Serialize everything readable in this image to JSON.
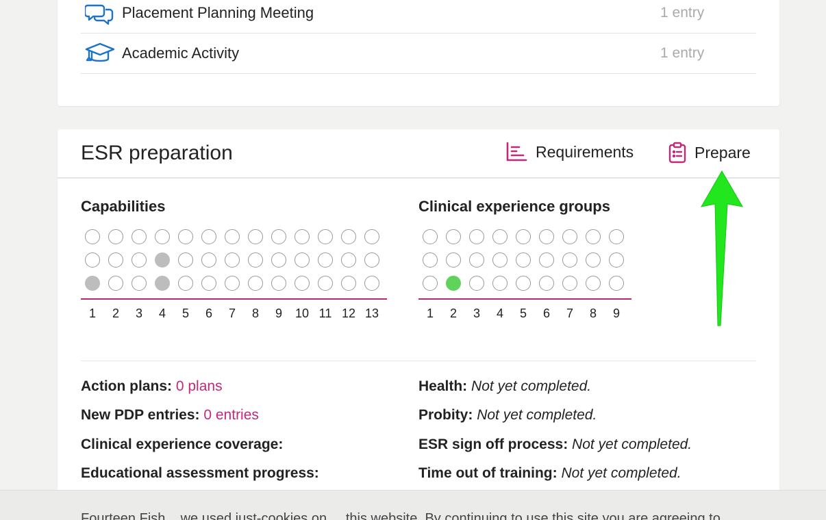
{
  "entries": [
    {
      "icon": "chat-bubbles-icon",
      "name": "Placement Planning Meeting",
      "count": "1 entry"
    },
    {
      "icon": "graduation-cap-icon",
      "name": "Academic Activity",
      "count": "1 entry"
    }
  ],
  "esr": {
    "title": "ESR preparation",
    "requirements_label": "Requirements",
    "prepare_label": "Prepare",
    "capabilities": {
      "title": "Capabilities",
      "columns": [
        "1",
        "2",
        "3",
        "4",
        "5",
        "6",
        "7",
        "8",
        "9",
        "10",
        "11",
        "12",
        "13"
      ],
      "filled": [
        [
          1,
          3
        ],
        [
          2,
          0
        ],
        [
          2,
          3
        ]
      ]
    },
    "clinical": {
      "title": "Clinical experience groups",
      "columns": [
        "1",
        "2",
        "3",
        "4",
        "5",
        "6",
        "7",
        "8",
        "9"
      ],
      "filled": [
        [
          2,
          1
        ]
      ]
    },
    "left_info": [
      {
        "label": "Action plans:",
        "value": "0 plans"
      },
      {
        "label": "New PDP entries:",
        "value": "0 entries"
      },
      {
        "label": "Clinical experience coverage:",
        "value": ""
      },
      {
        "label": "Educational assessment progress:",
        "value": ""
      }
    ],
    "right_info": [
      {
        "label": "Health:",
        "value": "Not yet completed."
      },
      {
        "label": "Probity:",
        "value": "Not yet completed."
      },
      {
        "label": "ESR sign off process:",
        "value": "Not yet completed."
      },
      {
        "label": "Time out of training:",
        "value": "Not yet completed."
      }
    ]
  },
  "footer": {
    "text": "Fourteen Fish... we used just-cookies on ... this website. By continuing to use this site you are agreeing to"
  },
  "colors": {
    "accent": "#c2287a",
    "icon_blue": "#1a73c9",
    "green_dot": "#5fd35a",
    "grey_dot": "#bdbdbd",
    "arrow": "#22e61e"
  }
}
